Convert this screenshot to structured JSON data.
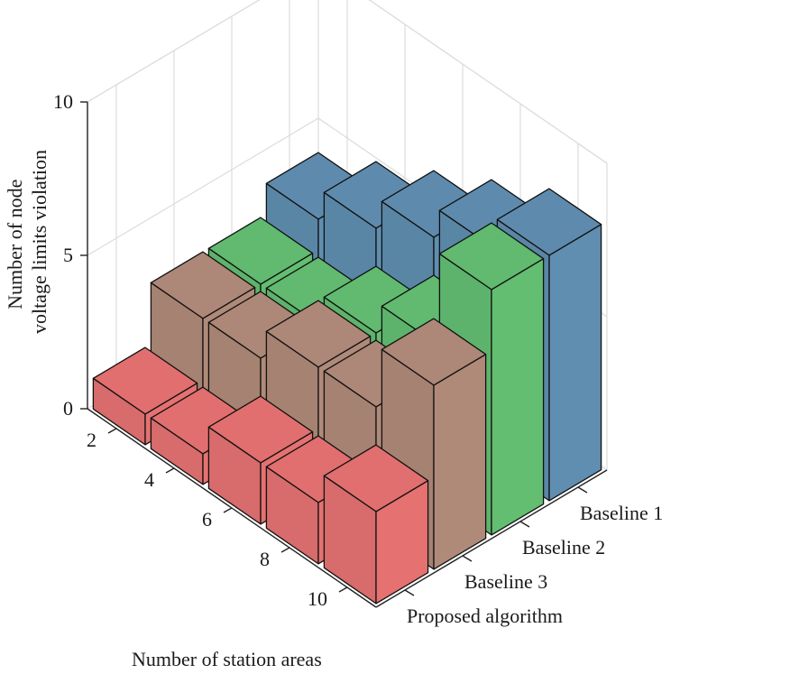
{
  "chart_data": {
    "type": "bar3d",
    "zlabel": "Number of node voltage limits violation",
    "zlabel_lines": [
      "Number of node",
      "voltage limits violation"
    ],
    "xlabel": "Number of station areas",
    "x_categories": [
      "2",
      "4",
      "6",
      "8",
      "10"
    ],
    "y_categories": [
      "Proposed algorithm",
      "Baseline 3",
      "Baseline 2",
      "Baseline 1"
    ],
    "zlim": [
      0,
      10
    ],
    "z_ticks": [
      "0",
      "5",
      "10"
    ],
    "grid": true,
    "series": [
      {
        "name": "Proposed algorithm",
        "color": "#d86b6b",
        "values": [
          1,
          1,
          2,
          2,
          3
        ]
      },
      {
        "name": "Baseline 3",
        "color": "#a68272",
        "values": [
          3,
          3,
          4,
          4,
          6
        ]
      },
      {
        "name": "Baseline 2",
        "color": "#5db36b",
        "values": [
          3,
          3,
          4,
          5,
          8
        ]
      },
      {
        "name": "Baseline 1",
        "color": "#5a86a6",
        "values": [
          4,
          5,
          6,
          7,
          8
        ]
      }
    ]
  }
}
